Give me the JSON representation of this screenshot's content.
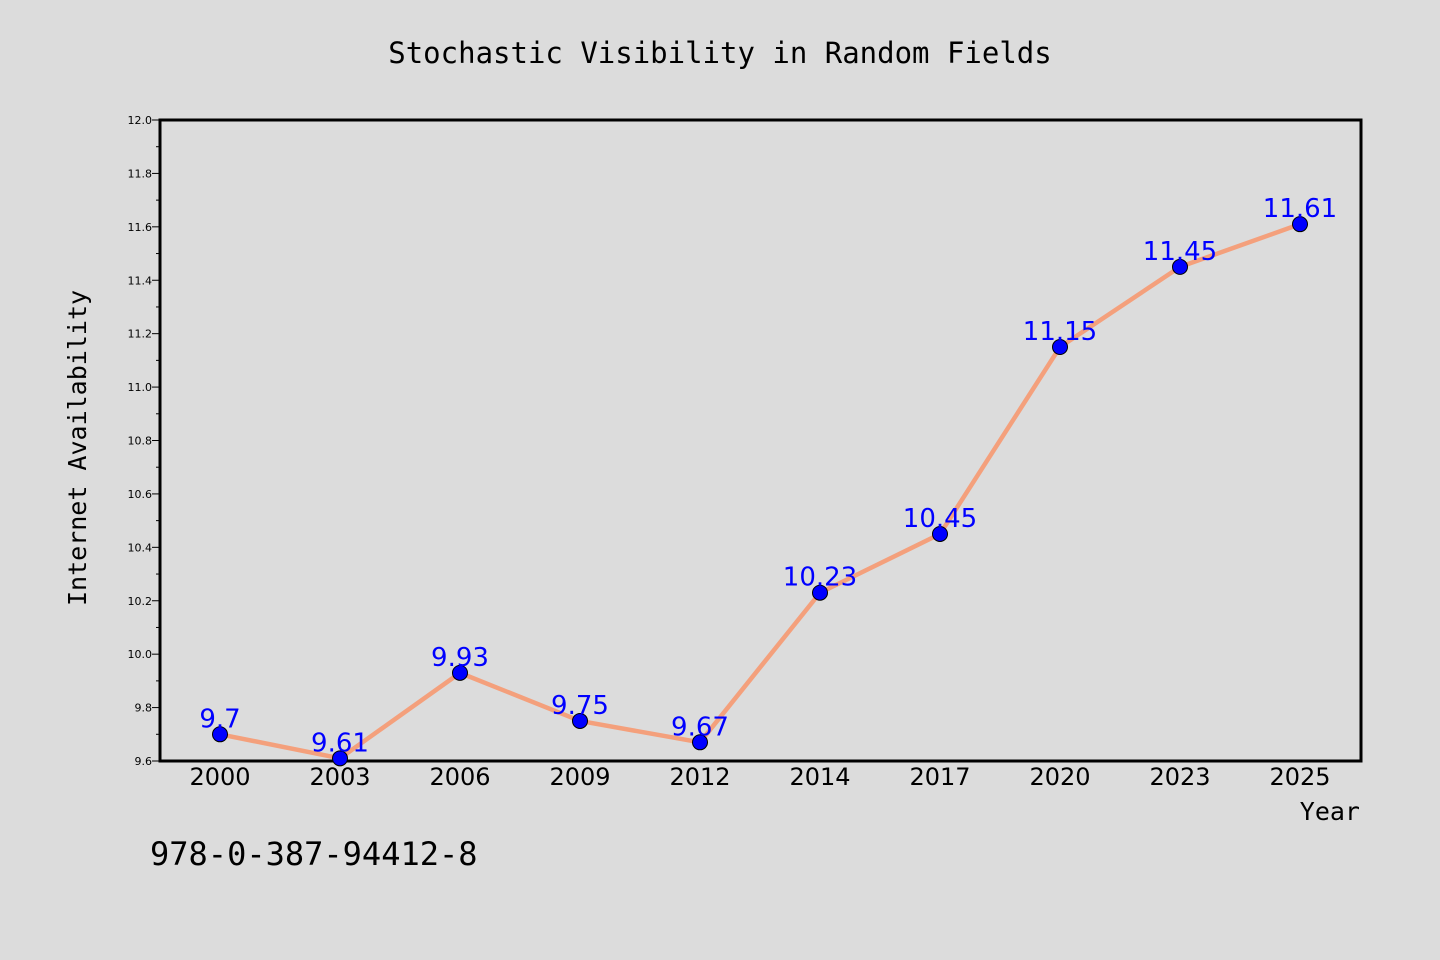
{
  "chart_data": {
    "type": "line",
    "title": "Stochastic Visibility in Random Fields",
    "xlabel": "Year",
    "ylabel": "Internet Availability",
    "categories": [
      "2000",
      "2003",
      "2006",
      "2009",
      "2012",
      "2014",
      "2017",
      "2020",
      "2023",
      "2025"
    ],
    "series": [
      {
        "values": [
          9.7,
          9.61,
          9.93,
          9.75,
          9.67,
          10.23,
          10.45,
          11.15,
          11.45,
          11.61
        ]
      }
    ],
    "data_labels": [
      "9.7",
      "9.61",
      "9.93",
      "9.75",
      "9.67",
      "10.23",
      "10.45",
      "11.15",
      "11.45",
      "11.61"
    ],
    "ylim": [
      9.6,
      12.0
    ],
    "y_ticks": [
      "9.6",
      "9.8",
      "10.0",
      "10.2",
      "10.4",
      "10.6",
      "10.8",
      "11.0",
      "11.2",
      "11.4",
      "11.6",
      "11.8",
      "12.0"
    ],
    "grid": false,
    "legend": "none",
    "colors": {
      "line": "#f4a07c",
      "marker": "#0000ff",
      "label": "#0000ff",
      "background": "#dcdcdc"
    }
  },
  "annotation": "978-0-387-94412-8"
}
